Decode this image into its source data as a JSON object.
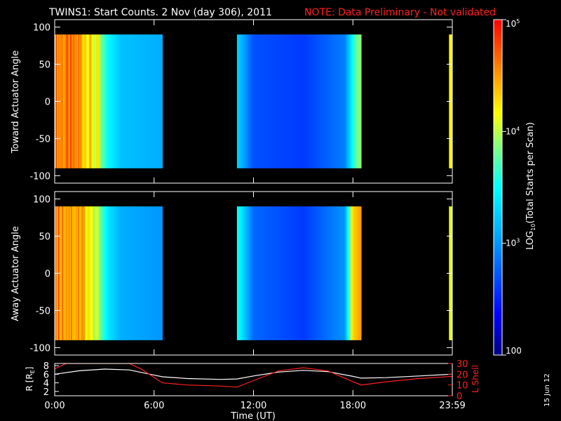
{
  "title": "TWINS1: Start Counts.  2 Nov (day 306), 2011",
  "note": "NOTE: Data Preliminary - Not validated",
  "date_stamp": "15 Jun 12",
  "colors": {
    "note": "#ff2020",
    "frame": "#ffffff",
    "lshell": "#ff2020",
    "radius": "#ffffff"
  },
  "chart_data": [
    {
      "type": "heatmap",
      "panel": "toward",
      "ylabel": "Toward Actuator Angle",
      "ylim": [
        -110,
        110
      ],
      "yticks": [
        100,
        50,
        0,
        -50,
        -100
      ],
      "xlim": [
        0,
        24
      ],
      "angle_coverage": [
        -90,
        90
      ],
      "data_intervals_hours": [
        [
          0.0,
          6.5
        ],
        [
          11.0,
          18.5
        ],
        [
          23.8,
          24.0
        ]
      ],
      "log_counts_profile": [
        {
          "t": 0.0,
          "v": 4.6
        },
        {
          "t": 1.5,
          "v": 4.5
        },
        {
          "t": 2.5,
          "v": 4.1
        },
        {
          "t": 3.2,
          "v": 3.5
        },
        {
          "t": 4.0,
          "v": 3.2
        },
        {
          "t": 6.5,
          "v": 3.1
        },
        {
          "t": 11.0,
          "v": 3.3
        },
        {
          "t": 12.0,
          "v": 2.7
        },
        {
          "t": 15.0,
          "v": 2.6
        },
        {
          "t": 17.5,
          "v": 2.9
        },
        {
          "t": 18.2,
          "v": 3.8
        },
        {
          "t": 18.5,
          "v": 3.9
        },
        {
          "t": 23.8,
          "v": 4.2
        },
        {
          "t": 24.0,
          "v": 4.2
        }
      ]
    },
    {
      "type": "heatmap",
      "panel": "away",
      "ylabel": "Away Actuator Angle",
      "ylim": [
        -110,
        110
      ],
      "yticks": [
        100,
        50,
        0,
        -50,
        -100
      ],
      "xlim": [
        0,
        24
      ],
      "angle_coverage": [
        -90,
        90
      ],
      "data_intervals_hours": [
        [
          0.0,
          6.5
        ],
        [
          11.0,
          18.5
        ],
        [
          23.8,
          24.0
        ]
      ],
      "log_counts_profile": [
        {
          "t": 0.0,
          "v": 4.6
        },
        {
          "t": 1.5,
          "v": 4.5
        },
        {
          "t": 2.5,
          "v": 4.0
        },
        {
          "t": 3.2,
          "v": 3.4
        },
        {
          "t": 4.0,
          "v": 3.1
        },
        {
          "t": 6.5,
          "v": 3.0
        },
        {
          "t": 11.0,
          "v": 3.6
        },
        {
          "t": 12.0,
          "v": 2.8
        },
        {
          "t": 15.0,
          "v": 2.6
        },
        {
          "t": 17.5,
          "v": 3.0
        },
        {
          "t": 18.0,
          "v": 4.3
        },
        {
          "t": 18.5,
          "v": 4.5
        },
        {
          "t": 23.8,
          "v": 4.1
        },
        {
          "t": 24.0,
          "v": 4.1
        }
      ]
    },
    {
      "type": "line",
      "panel": "orbit",
      "xlabel": "Time (UT)",
      "xlim": [
        0,
        24
      ],
      "xticks": [
        "0:00",
        "6:00",
        "12:00",
        "18:00",
        "23:59"
      ],
      "xtick_hours": [
        0,
        6,
        12,
        18,
        24
      ],
      "ylabel_left": "R [R",
      "ylabel_left_sub": "E",
      "ylabel_left_end": "]",
      "ylim_left": [
        1,
        8.5
      ],
      "yticks_left": [
        8,
        6,
        4,
        2
      ],
      "ylabel_right": "L Shell",
      "ylim_right": [
        0,
        30
      ],
      "yticks_right": [
        30,
        20,
        10,
        0
      ],
      "series": [
        {
          "axis": "left",
          "color": "#ffffff",
          "points": [
            [
              0,
              6.0
            ],
            [
              1.5,
              6.8
            ],
            [
              3,
              7.2
            ],
            [
              4.5,
              7.0
            ],
            [
              6,
              5.8
            ],
            [
              6.5,
              5.4
            ],
            [
              8,
              5.0
            ],
            [
              10,
              4.8
            ],
            [
              11,
              4.9
            ],
            [
              12,
              5.6
            ],
            [
              13.5,
              6.5
            ],
            [
              15,
              6.9
            ],
            [
              16.5,
              6.6
            ],
            [
              18,
              5.5
            ],
            [
              18.5,
              5.1
            ],
            [
              20,
              5.2
            ],
            [
              22,
              5.6
            ],
            [
              24,
              6.0
            ]
          ]
        },
        {
          "axis": "right",
          "color": "#ff2020",
          "points": [
            [
              0,
              25
            ],
            [
              0.7,
              30
            ],
            [
              4.5,
              30
            ],
            [
              5.2,
              25
            ],
            [
              6.5,
              12
            ],
            [
              8,
              10
            ],
            [
              10,
              9
            ],
            [
              11,
              8
            ],
            [
              12,
              14
            ],
            [
              13.5,
              23
            ],
            [
              15,
              26
            ],
            [
              16.5,
              23
            ],
            [
              18,
              13
            ],
            [
              18.5,
              10
            ],
            [
              20,
              13
            ],
            [
              22,
              16
            ],
            [
              24,
              18
            ]
          ]
        }
      ]
    },
    {
      "type": "colorbar",
      "label_pre": "LOG",
      "label_sub": "10",
      "label_post": "(Total Starts per Scan)",
      "scale": "log",
      "range": [
        100,
        100000
      ],
      "ticks": [
        {
          "value": 100000,
          "base": "10",
          "exp": "5"
        },
        {
          "value": 10000,
          "base": "10",
          "exp": "4"
        },
        {
          "value": 1000,
          "base": "10",
          "exp": "3"
        },
        {
          "value": 100,
          "base": "100",
          "exp": ""
        }
      ]
    }
  ]
}
